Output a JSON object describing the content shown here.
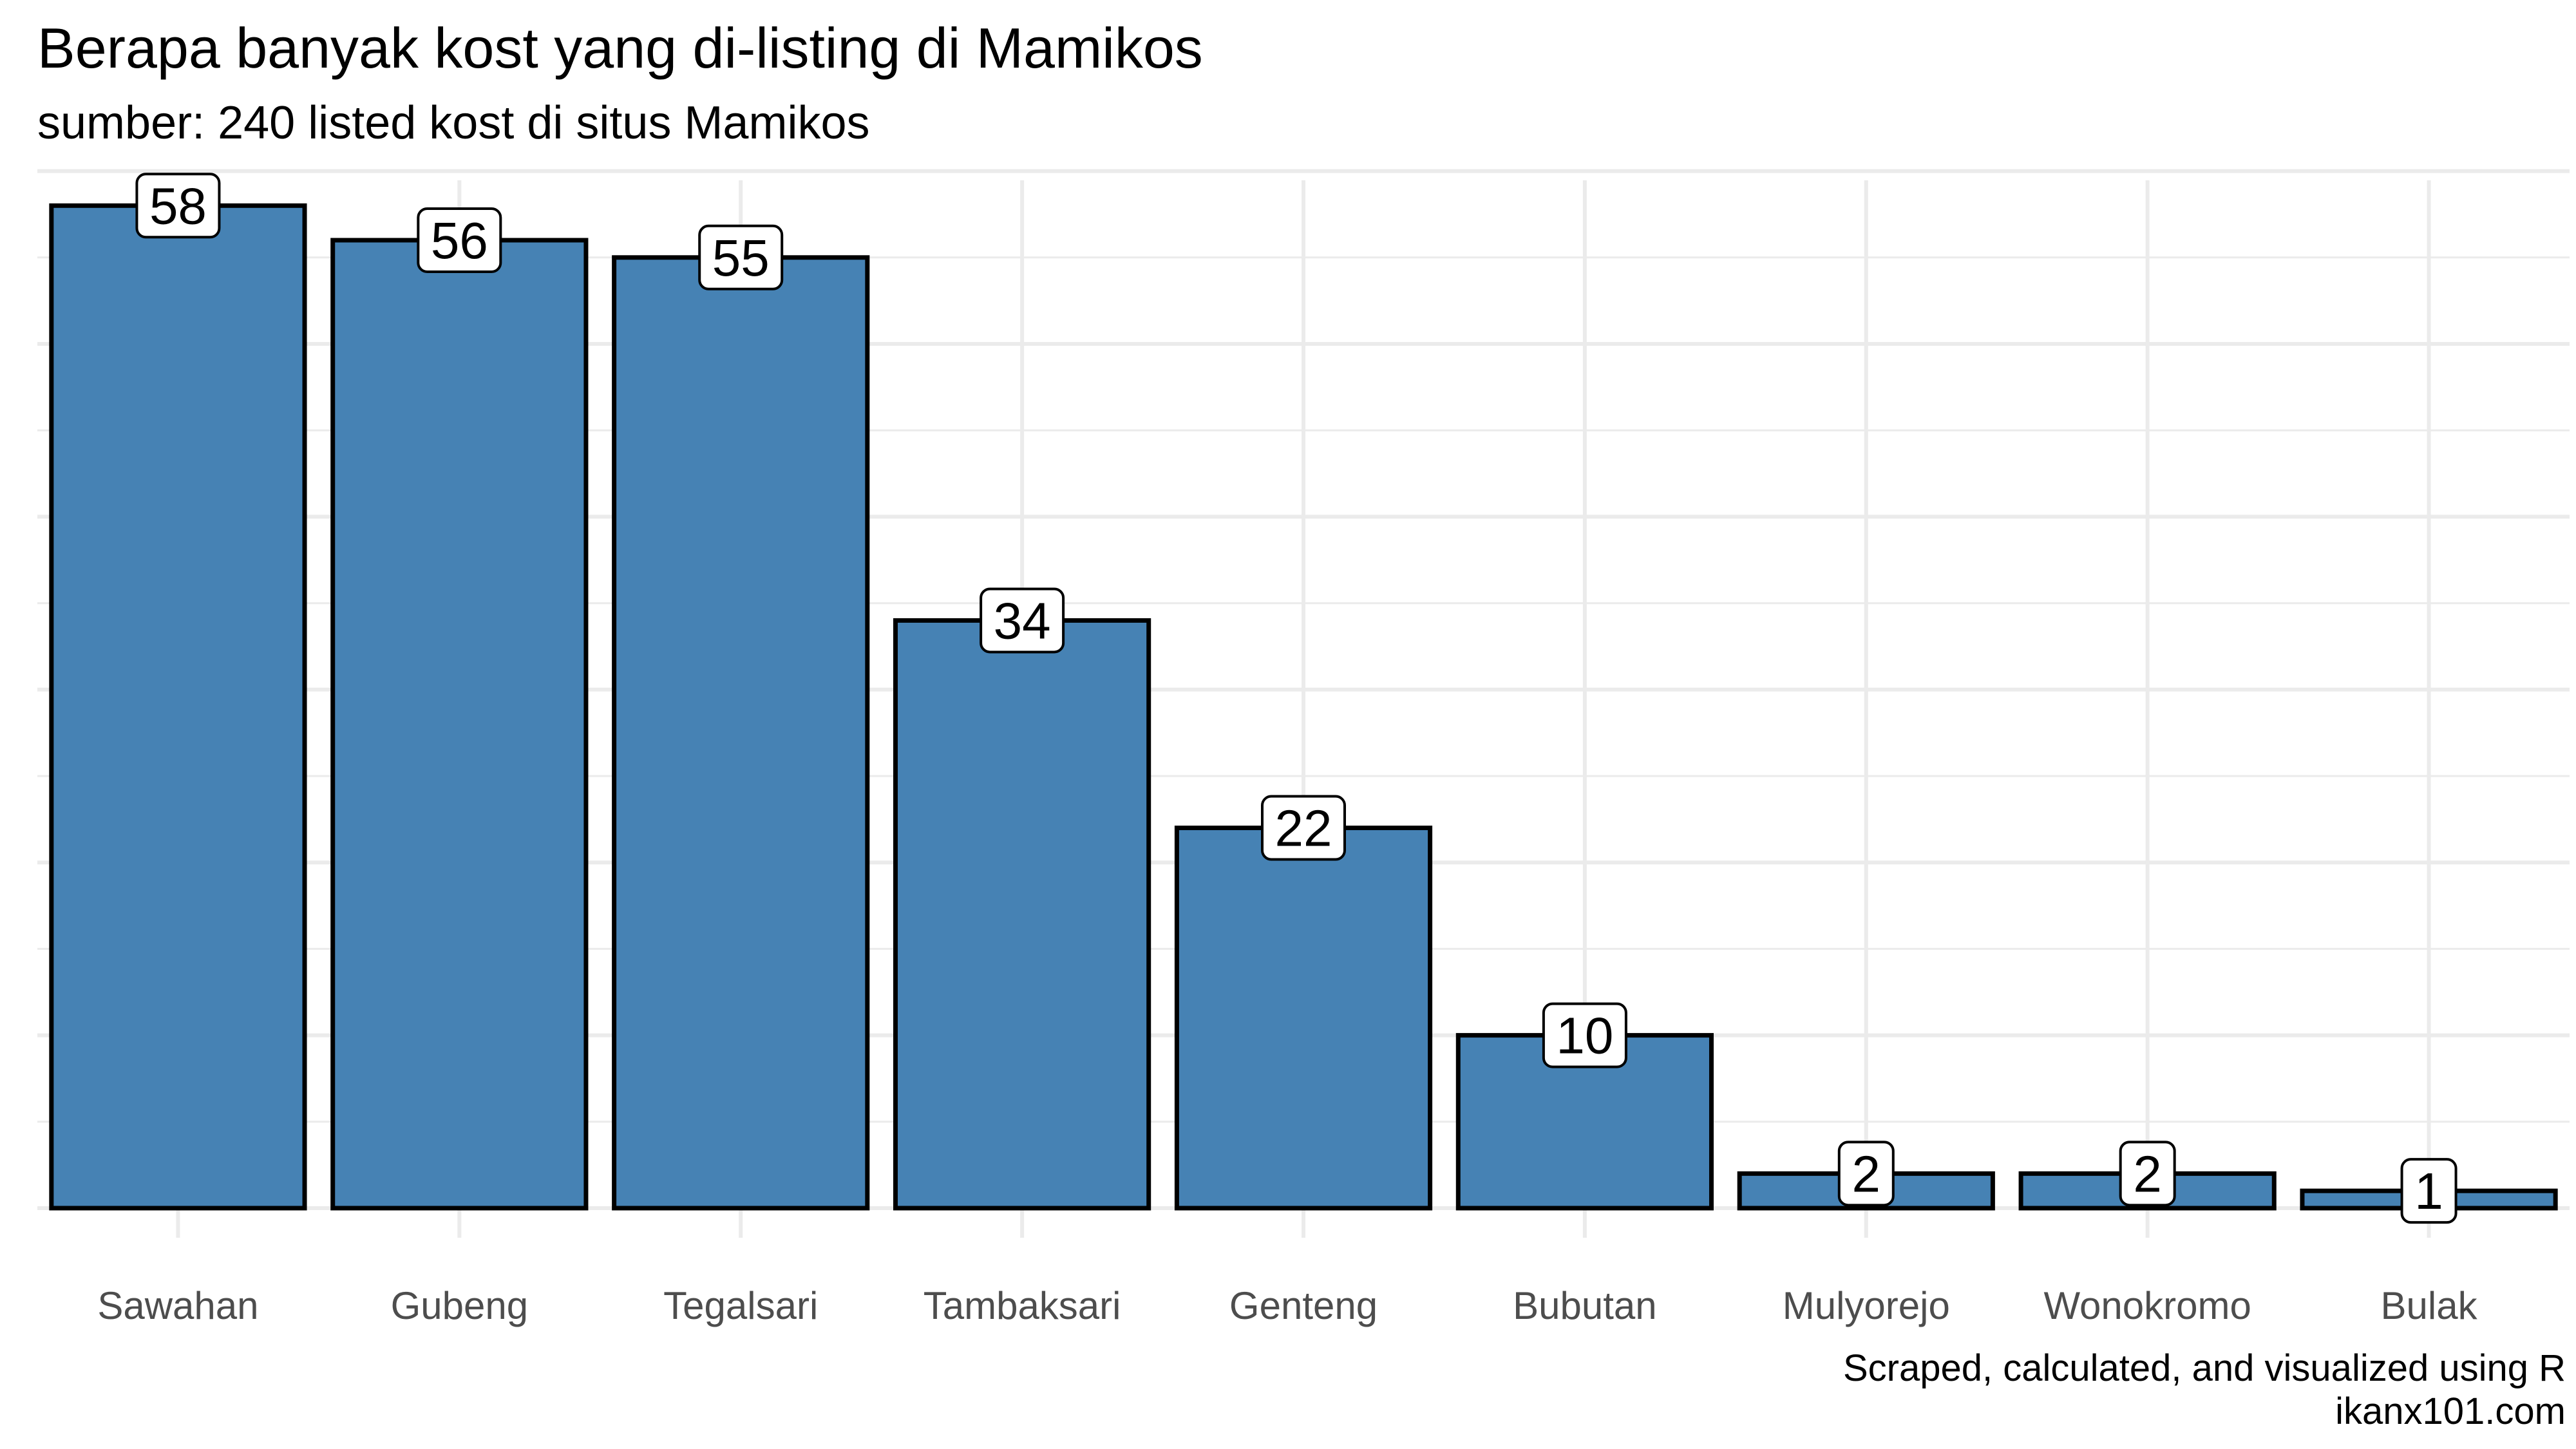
{
  "header": {
    "title": "Berapa banyak kost yang di-listing di Mamikos",
    "subtitle": "sumber: 240 listed kost di situs Mamikos"
  },
  "caption": {
    "line1": "Scraped, calculated, and visualized using R",
    "line2": "ikanx101.com"
  },
  "colors": {
    "bar_fill": "#4682b4",
    "bar_stroke": "#000000",
    "grid": "#ebebeb",
    "tick_label": "#4d4d4d"
  },
  "chart_data": {
    "type": "bar",
    "title": "Berapa banyak kost yang di-listing di Mamikos",
    "subtitle": "sumber: 240 listed kost di situs Mamikos",
    "xlabel": "",
    "ylabel": "",
    "categories": [
      "Sawahan",
      "Gubeng",
      "Tegalsari",
      "Tambaksari",
      "Genteng",
      "Bubutan",
      "Mulyorejo",
      "Wonokromo",
      "Bulak"
    ],
    "values": [
      58,
      56,
      55,
      34,
      22,
      10,
      2,
      2,
      1
    ],
    "ylim": [
      0,
      60
    ],
    "grid": true,
    "y_ticks_visible": false,
    "data_labels": true,
    "legend": "none"
  }
}
